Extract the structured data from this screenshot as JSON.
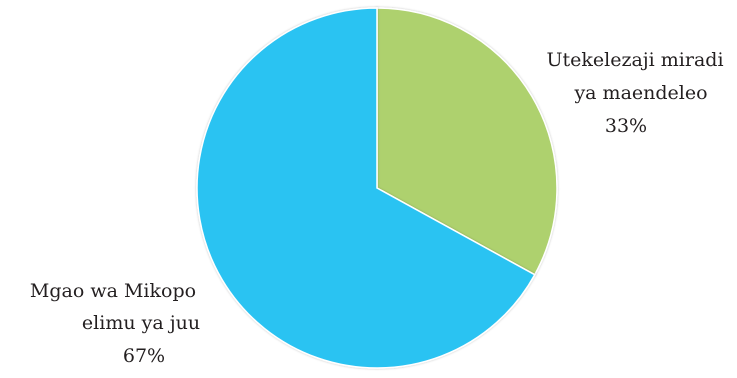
{
  "chart_data": {
    "type": "pie",
    "title": "",
    "slices": [
      {
        "label_lines": [
          "Utekelezaji miradi",
          "ya maendeleo"
        ],
        "value": 33,
        "value_label": "33%",
        "color": "#aed16e"
      },
      {
        "label_lines": [
          "Mgao wa Mikopo",
          "elimu ya juu"
        ],
        "value": 67,
        "value_label": "67%",
        "color": "#2cc3f2"
      }
    ],
    "legend": "none",
    "start": "top",
    "direction": "clockwise"
  }
}
